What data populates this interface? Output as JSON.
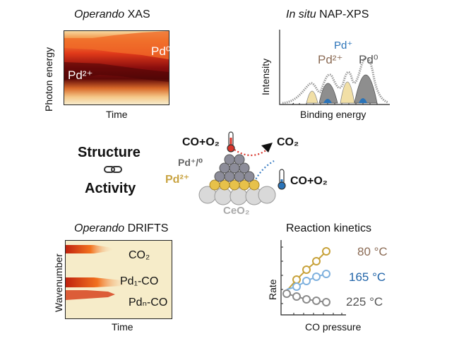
{
  "xas": {
    "title_italic": "Operando",
    "title_rest": " XAS",
    "ylabel": "Photon energy",
    "xlabel": "Time",
    "label_pd0": "Pd⁰",
    "label_pd2": "Pd²⁺"
  },
  "xps": {
    "title_italic": "In situ",
    "title_rest": " NAP-XPS",
    "ylabel": "Intensity",
    "xlabel": "Binding energy",
    "label_pdplus": "Pd⁺",
    "label_pd2": "Pd²⁺",
    "label_pd0": "Pd⁰"
  },
  "center": {
    "structure": "Structure",
    "activity": "Activity",
    "reactant_top": "CO+O₂",
    "product": "CO₂",
    "reactant_bottom": "CO+O₂",
    "pd_plus0": "Pd⁺/⁰",
    "pd_2plus": "Pd²⁺",
    "support": "CeO₂"
  },
  "drifts": {
    "title_italic": "Operando",
    "title_rest": " DRIFTS",
    "ylabel": "Wavenumber",
    "xlabel": "Time",
    "band_co2": "CO₂",
    "band_pd1": "Pd₁-CO",
    "band_pdn": "Pdₙ-CO"
  },
  "kinetics": {
    "title": "Reaction kinetics",
    "ylabel": "Rate",
    "xlabel": "CO pressure",
    "series": [
      {
        "name": "80 °C",
        "color": "#c8a23a",
        "label_color": "#8b6b55"
      },
      {
        "name": "165 °C",
        "color": "#7fb1de",
        "label_color": "#1f63a8"
      },
      {
        "name": "225 °C",
        "color": "#8a8a8a",
        "label_color": "#555555"
      }
    ]
  },
  "colors": {
    "pd2_gold": "#c9a443",
    "pd0_gray": "#7f7f7f",
    "pdplus_blue": "#2a73b8",
    "heat_dark": "#6b0a0a",
    "heat_light": "#f7eccd"
  }
}
